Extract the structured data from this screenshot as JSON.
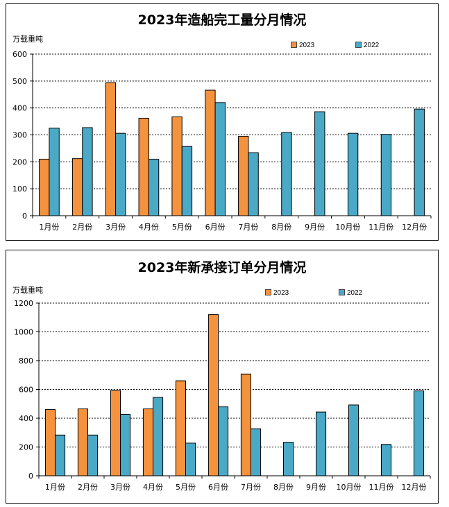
{
  "colors": {
    "series_2023": "#f5923e",
    "series_2022": "#4ba9c8",
    "outline": "#000000"
  },
  "chart_data": [
    {
      "type": "bar",
      "title": "2023年造船完工量分月情况",
      "ylabel": "万载重吨",
      "categories": [
        "1月份",
        "2月份",
        "3月份",
        "4月份",
        "5月份",
        "6月份",
        "7月份",
        "8月份",
        "9月份",
        "10月份",
        "11月份",
        "12月份"
      ],
      "series": [
        {
          "name": "2023",
          "color": "#f5923e",
          "values": [
            210,
            212,
            494,
            362,
            367,
            466,
            295,
            null,
            null,
            null,
            null,
            null
          ]
        },
        {
          "name": "2022",
          "color": "#4ba9c8",
          "values": [
            325,
            327,
            306,
            210,
            257,
            420,
            234,
            309,
            386,
            306,
            302,
            396
          ]
        }
      ],
      "ylim": [
        0,
        600
      ],
      "yticks": [
        0,
        100,
        200,
        300,
        400,
        500,
        600
      ],
      "grid": true,
      "legend_position": "top-right"
    },
    {
      "type": "bar",
      "title": "2023年新承接订单分月情况",
      "ylabel": "万载重吨",
      "categories": [
        "1月份",
        "2月份",
        "3月份",
        "4月份",
        "5月份",
        "6月份",
        "7月份",
        "8月份",
        "9月份",
        "10月份",
        "11月份",
        "12月份"
      ],
      "series": [
        {
          "name": "2023",
          "color": "#f5923e",
          "values": [
            460,
            465,
            593,
            465,
            660,
            1120,
            707,
            null,
            null,
            null,
            null,
            null
          ]
        },
        {
          "name": "2022",
          "color": "#4ba9c8",
          "values": [
            283,
            283,
            427,
            545,
            227,
            479,
            327,
            233,
            443,
            492,
            218,
            590
          ]
        }
      ],
      "ylim": [
        0,
        1200
      ],
      "yticks": [
        0,
        200,
        400,
        600,
        800,
        1000,
        1200
      ],
      "grid": true,
      "legend_position": "top-right"
    }
  ]
}
